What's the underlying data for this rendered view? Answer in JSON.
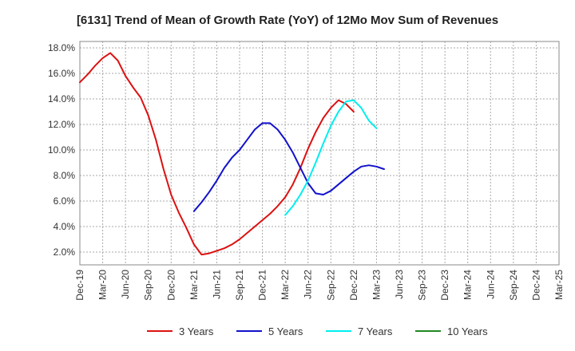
{
  "chart_data": {
    "type": "line",
    "title": "[6131]  Trend of Mean of Growth Rate (YoY) of 12Mo Mov Sum of Revenues",
    "xlabel": "",
    "ylabel": "",
    "ylim": [
      1.0,
      18.5
    ],
    "y_ticks": [
      2.0,
      4.0,
      6.0,
      8.0,
      10.0,
      12.0,
      14.0,
      16.0,
      18.0
    ],
    "y_tick_labels": [
      "2.0%",
      "4.0%",
      "6.0%",
      "8.0%",
      "10.0%",
      "12.0%",
      "14.0%",
      "16.0%",
      "18.0%"
    ],
    "x_tick_labels": [
      "Dec-19",
      "Mar-20",
      "Jun-20",
      "Sep-20",
      "Dec-20",
      "Mar-21",
      "Jun-21",
      "Sep-21",
      "Dec-21",
      "Mar-22",
      "Jun-22",
      "Sep-22",
      "Dec-22",
      "Mar-23",
      "Jun-23",
      "Sep-23",
      "Dec-23",
      "Mar-24",
      "Jun-24",
      "Sep-24",
      "Dec-24",
      "Mar-25"
    ],
    "grid": true,
    "legend_position": "bottom",
    "series": [
      {
        "name": "3 Years",
        "color": "#dd1111",
        "start_index": 0,
        "values": [
          15.3,
          15.9,
          16.6,
          17.2,
          17.6,
          17.0,
          15.8,
          14.9,
          14.1,
          12.7,
          10.8,
          8.5,
          6.5,
          5.1,
          3.9,
          2.6,
          1.8,
          1.9,
          2.1,
          2.3,
          2.6,
          3.0,
          3.5,
          4.0,
          4.5,
          5.0,
          5.6,
          6.3,
          7.3,
          8.6,
          10.1,
          11.4,
          12.5,
          13.3,
          13.9,
          13.6,
          13.0
        ]
      },
      {
        "name": "5 Years",
        "color": "#1111cc",
        "start_index": 15,
        "values": [
          5.2,
          5.9,
          6.7,
          7.6,
          8.6,
          9.4,
          10.0,
          10.8,
          11.6,
          12.1,
          12.1,
          11.6,
          10.8,
          9.8,
          8.6,
          7.4,
          6.6,
          6.5,
          6.8,
          7.3,
          7.8,
          8.3,
          8.7,
          8.8,
          8.7,
          8.5
        ]
      },
      {
        "name": "7 Years",
        "color": "#00eeee",
        "start_index": 27,
        "values": [
          4.9,
          5.6,
          6.5,
          7.6,
          9.0,
          10.5,
          11.9,
          13.0,
          13.8,
          13.9,
          13.3,
          12.3,
          11.7
        ]
      },
      {
        "name": "10 Years",
        "color": "#228822",
        "start_index": 0,
        "values": []
      }
    ]
  }
}
